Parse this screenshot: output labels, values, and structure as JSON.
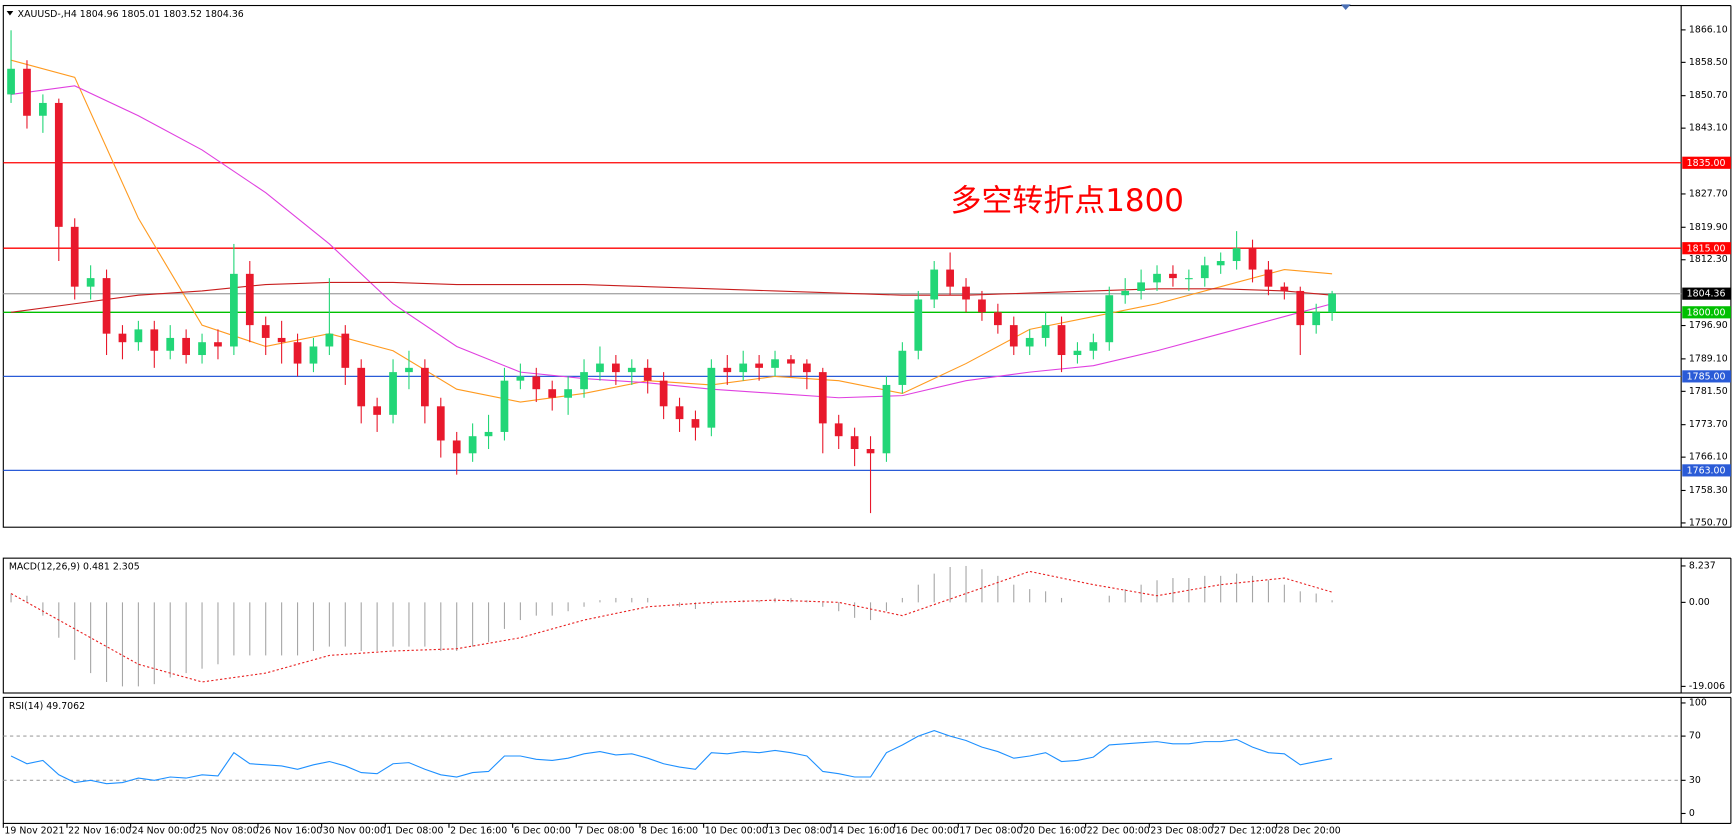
{
  "chart_data": [
    {
      "type": "candlestick",
      "title": "XAUUSD-,H4  1804.96 1805.01 1803.52 1804.36",
      "annotation": "多空转折点1800",
      "annotation_color": "#ff0000",
      "categories": [
        "19 Nov 2021",
        null,
        null,
        null,
        "22 Nov 16:00",
        null,
        null,
        null,
        "24 Nov 00:00",
        null,
        null,
        null,
        "25 Nov 08:00",
        null,
        null,
        null,
        "26 Nov 16:00",
        null,
        null,
        null,
        "30 Nov 00:00",
        null,
        null,
        null,
        "1 Dec 08:00",
        null,
        null,
        null,
        "2 Dec 16:00",
        null,
        null,
        null,
        "6 Dec 00:00",
        null,
        null,
        null,
        "7 Dec 08:00",
        null,
        null,
        null,
        "8 Dec 16:00",
        null,
        null,
        null,
        "10 Dec 00:00",
        null,
        null,
        null,
        "13 Dec 08:00",
        null,
        null,
        null,
        "14 Dec 16:00",
        null,
        null,
        null,
        "16 Dec 00:00",
        null,
        null,
        null,
        "17 Dec 08:00",
        null,
        null,
        null,
        "20 Dec 16:00",
        null,
        null,
        null,
        "22 Dec 00:00",
        null,
        null,
        null,
        "23 Dec 08:00",
        null,
        null,
        null,
        "27 Dec 12:00",
        null,
        null,
        null,
        "28 Dec 20:00",
        null,
        null,
        null
      ],
      "open": [
        1851,
        1857,
        1846,
        1849,
        1820,
        1806,
        1808,
        1795,
        1793,
        1796,
        1791,
        1794,
        1790,
        1793,
        1792,
        1809,
        1797,
        1794,
        1793,
        1788,
        1792,
        1795,
        1787,
        1778,
        1776,
        1786,
        1787,
        1778,
        1770,
        1767,
        1771,
        1772,
        1784,
        1785,
        1782,
        1780,
        1782,
        1786,
        1788,
        1786,
        1787,
        1784,
        1778,
        1775,
        1773,
        1787,
        1786,
        1788,
        1787,
        1789,
        1788,
        1786,
        1774,
        1771,
        1768,
        1767,
        1783,
        1791,
        1803,
        1810,
        1806,
        1803,
        1800,
        1797,
        1792,
        1794,
        1797,
        1790,
        1791,
        1793,
        1804,
        1805,
        1807,
        1809,
        1808,
        1808,
        1811,
        1812,
        1815,
        1810,
        1806,
        1805,
        1797,
        1800
      ],
      "high": [
        1866,
        1859,
        1851,
        1850,
        1822,
        1811,
        1810,
        1797,
        1798,
        1798,
        1797,
        1796,
        1795,
        1796,
        1816,
        1812,
        1799,
        1798,
        1795,
        1794,
        1808,
        1797,
        1789,
        1780,
        1789,
        1791,
        1789,
        1780,
        1772,
        1774,
        1776,
        1787,
        1788,
        1787,
        1784,
        1785,
        1789,
        1792,
        1790,
        1789,
        1789,
        1786,
        1780,
        1777,
        1789,
        1790,
        1791,
        1790,
        1791,
        1790,
        1789,
        1787,
        1776,
        1773,
        1771,
        1785,
        1793,
        1805,
        1812,
        1814,
        1808,
        1805,
        1802,
        1799,
        1796,
        1800,
        1799,
        1793,
        1795,
        1806,
        1808,
        1810,
        1811,
        1811,
        1810,
        1813,
        1814,
        1819,
        1817,
        1812,
        1807,
        1806,
        1802,
        1805.01
      ],
      "low": [
        1849,
        1843,
        1842,
        1812,
        1803,
        1803,
        1790,
        1789,
        1791,
        1787,
        1789,
        1788,
        1788,
        1789,
        1790,
        1793,
        1790,
        1788,
        1785,
        1786,
        1790,
        1783,
        1774,
        1772,
        1774,
        1782,
        1774,
        1766,
        1762,
        1765,
        1768,
        1770,
        1782,
        1779,
        1777,
        1776,
        1780,
        1784,
        1783,
        1783,
        1781,
        1775,
        1772,
        1770,
        1771,
        1783,
        1784,
        1784,
        1785,
        1785,
        1782,
        1767,
        1768,
        1764,
        1753,
        1765,
        1781,
        1789,
        1801,
        1804,
        1800,
        1798,
        1795,
        1790,
        1790,
        1792,
        1786,
        1788,
        1789,
        1791,
        1802,
        1803,
        1805,
        1806,
        1805,
        1806,
        1809,
        1810,
        1807,
        1804,
        1803,
        1790,
        1795,
        1798
      ],
      "close": [
        1857,
        1846,
        1849,
        1820,
        1806,
        1808,
        1795,
        1793,
        1796,
        1791,
        1794,
        1790,
        1793,
        1792,
        1809,
        1797,
        1794,
        1793,
        1788,
        1792,
        1795,
        1787,
        1778,
        1776,
        1786,
        1787,
        1778,
        1770,
        1767,
        1771,
        1772,
        1784,
        1785,
        1782,
        1780,
        1782,
        1786,
        1788,
        1786,
        1787,
        1784,
        1778,
        1775,
        1773,
        1787,
        1786,
        1788,
        1787,
        1789,
        1788,
        1786,
        1774,
        1771,
        1768,
        1767,
        1783,
        1791,
        1803,
        1810,
        1806,
        1803,
        1800,
        1797,
        1792,
        1794,
        1797,
        1790,
        1791,
        1793,
        1804,
        1805,
        1807,
        1809,
        1808,
        1808,
        1811,
        1812,
        1815,
        1810,
        1806,
        1805,
        1797,
        1800,
        1804.36
      ],
      "up_color": "#22d677",
      "down_color": "#e8192c",
      "series": [
        {
          "color": "#ff9a1f",
          "x": [
            0,
            4,
            8,
            12,
            16,
            20,
            24,
            28,
            32,
            36,
            40,
            44,
            48,
            52,
            56,
            60,
            64,
            68,
            72,
            76,
            80,
            83
          ],
          "values": [
            1859,
            1855,
            1822,
            1797,
            1792,
            1795,
            1791,
            1782,
            1779,
            1781,
            1784,
            1783,
            1785,
            1784,
            1781,
            1788,
            1796,
            1799,
            1802,
            1806,
            1810,
            1809
          ]
        },
        {
          "color": "#e040e0",
          "x": [
            0,
            4,
            8,
            12,
            16,
            20,
            24,
            28,
            32,
            36,
            40,
            44,
            48,
            52,
            56,
            60,
            64,
            68,
            72,
            76,
            80,
            83
          ],
          "values": [
            1851,
            1853,
            1846,
            1838,
            1828,
            1816,
            1802,
            1792,
            1786,
            1784.5,
            1783.5,
            1782,
            1781,
            1780,
            1780.5,
            1784,
            1786,
            1787.5,
            1791,
            1795,
            1799,
            1802
          ]
        },
        {
          "color": "#c81e1e",
          "x": [
            0,
            4,
            8,
            12,
            16,
            20,
            24,
            28,
            32,
            36,
            40,
            44,
            48,
            52,
            56,
            60,
            64,
            68,
            72,
            76,
            80,
            83
          ],
          "values": [
            1800,
            1802,
            1804,
            1805,
            1806.5,
            1807,
            1807,
            1806.5,
            1806.5,
            1806.5,
            1806,
            1805.5,
            1805,
            1804.5,
            1804,
            1804,
            1804.5,
            1805,
            1805.5,
            1805.5,
            1805,
            1804
          ]
        }
      ],
      "levels": [
        {
          "value": 1835,
          "label": "1835.00",
          "color": "#ff0000",
          "label_color": "#ff0000"
        },
        {
          "value": 1815,
          "label": "1815.00",
          "color": "#ff0000",
          "label_color": "#ff0000"
        },
        {
          "value": 1804.36,
          "label": "1804.36",
          "color": "#a9a9a9",
          "label_color": "#000000"
        },
        {
          "value": 1800,
          "label": "1800.00",
          "color": "#00c000",
          "label_color": "#00c000"
        },
        {
          "value": 1785,
          "label": "1785.00",
          "color": "#2a5bd7",
          "label_color": "#2a5bd7"
        },
        {
          "value": 1763,
          "label": "1763.00",
          "color": "#2a5bd7",
          "label_color": "#2a5bd7"
        }
      ],
      "ylim": [
        1749.7,
        1871.8
      ],
      "yticks": [
        {
          "value": 1866.1,
          "label": "1866.10"
        },
        {
          "value": 1858.5,
          "label": "1858.50"
        },
        {
          "value": 1850.7,
          "label": "1850.70"
        },
        {
          "value": 1843.1,
          "label": "1843.10"
        },
        {
          "value": 1827.7,
          "label": "1827.70"
        },
        {
          "value": 1819.9,
          "label": "1819.90"
        },
        {
          "value": 1812.3,
          "label": "1812.30"
        },
        {
          "value": 1796.9,
          "label": "1796.90"
        },
        {
          "value": 1789.1,
          "label": "1789.10"
        },
        {
          "value": 1781.5,
          "label": "1781.50"
        },
        {
          "value": 1773.7,
          "label": "1773.70"
        },
        {
          "value": 1766.1,
          "label": "1766.10"
        },
        {
          "value": 1758.3,
          "label": "1758.30"
        },
        {
          "value": 1750.7,
          "label": "1750.70"
        }
      ]
    },
    {
      "type": "macd",
      "title": "MACD(12,26,9) 0.481 2.305",
      "color": "#a6a6a6",
      "values": [
        2,
        1.5,
        -3,
        -8,
        -13,
        -16,
        -18,
        -19.006,
        -19,
        -18.5,
        -17,
        -16,
        -15,
        -14,
        -12,
        -12,
        -12,
        -12,
        -12,
        -11,
        -10,
        -10,
        -11,
        -11,
        -10,
        -10,
        -10,
        -11,
        -11,
        -10,
        -9,
        -6,
        -4,
        -3,
        -3,
        -2,
        -1,
        0.5,
        1,
        1,
        1,
        0,
        -1,
        -1.5,
        -0.5,
        0,
        0.5,
        0.5,
        1,
        1,
        0.5,
        -1,
        -2,
        -3.5,
        -4,
        -2,
        1,
        4,
        6.5,
        8,
        8.237,
        7.5,
        6,
        4,
        3,
        2.5,
        1,
        0,
        0,
        1.5,
        3,
        4,
        5,
        5.5,
        5.5,
        6,
        6,
        6.5,
        6,
        5,
        4,
        2.5,
        2,
        0.481
      ],
      "signal": {
        "color": "#e82020",
        "x": [
          0,
          4,
          8,
          12,
          16,
          20,
          24,
          28,
          32,
          36,
          40,
          44,
          48,
          52,
          56,
          60,
          64,
          68,
          72,
          76,
          80,
          83
        ],
        "values": [
          2,
          -6,
          -14,
          -18,
          -16,
          -12,
          -11,
          -10.5,
          -8,
          -4,
          -1,
          0,
          0.5,
          0,
          -3,
          2,
          7,
          4,
          1.5,
          4,
          5.5,
          2.305
        ]
      },
      "ylim": [
        -20.5,
        10
      ],
      "yticks": [
        8.237,
        {
          "value": 0,
          "label": "0.00"
        },
        -19.006
      ]
    },
    {
      "type": "line",
      "title": "RSI(14) 49.7062",
      "color": "#1e90ff",
      "values": [
        52,
        45,
        48,
        35,
        28,
        30,
        27,
        28,
        32,
        30,
        33,
        32,
        35,
        34,
        55,
        45,
        44,
        43,
        40,
        44,
        47,
        43,
        37,
        36,
        45,
        46,
        40,
        35,
        33,
        37,
        38,
        52,
        52,
        49,
        48,
        50,
        54,
        56,
        53,
        54,
        50,
        45,
        42,
        40,
        55,
        54,
        56,
        55,
        57,
        55,
        52,
        38,
        36,
        33,
        33,
        55,
        62,
        70,
        75,
        70,
        66,
        60,
        56,
        50,
        52,
        55,
        47,
        48,
        51,
        62,
        63,
        64,
        65,
        63,
        63,
        65,
        65,
        67,
        60,
        55,
        54,
        44,
        47,
        49.7062
      ],
      "dashed_levels": [
        70,
        30
      ],
      "ylim": [
        -9,
        105
      ],
      "yticks": [
        100,
        70,
        30,
        0
      ]
    }
  ]
}
